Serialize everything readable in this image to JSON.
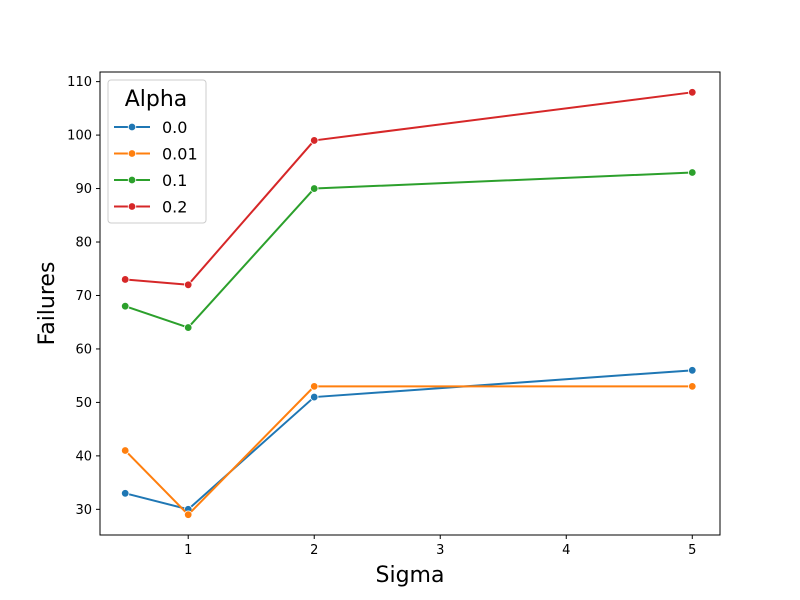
{
  "chart_data": {
    "type": "line",
    "title": "",
    "xlabel": "Sigma",
    "ylabel": "Failures",
    "xlim": [
      0.3,
      5.22
    ],
    "ylim": [
      25.2,
      111.8
    ],
    "xticks": [
      1,
      2,
      3,
      4,
      5
    ],
    "yticks": [
      30,
      40,
      50,
      60,
      70,
      80,
      90,
      100,
      110
    ],
    "grid": false,
    "legend": {
      "title": "Alpha",
      "placement": "top-left"
    },
    "x": [
      0.5,
      1,
      2,
      5
    ],
    "series": [
      {
        "name": "0.0",
        "color": "#1f77b4",
        "values": [
          33,
          30,
          51,
          56
        ]
      },
      {
        "name": "0.01",
        "color": "#ff7f0e",
        "values": [
          41,
          29,
          53,
          53
        ]
      },
      {
        "name": "0.1",
        "color": "#2ca02c",
        "values": [
          68,
          64,
          90,
          93
        ]
      },
      {
        "name": "0.2",
        "color": "#d62728",
        "values": [
          73,
          72,
          99,
          108
        ]
      }
    ]
  }
}
